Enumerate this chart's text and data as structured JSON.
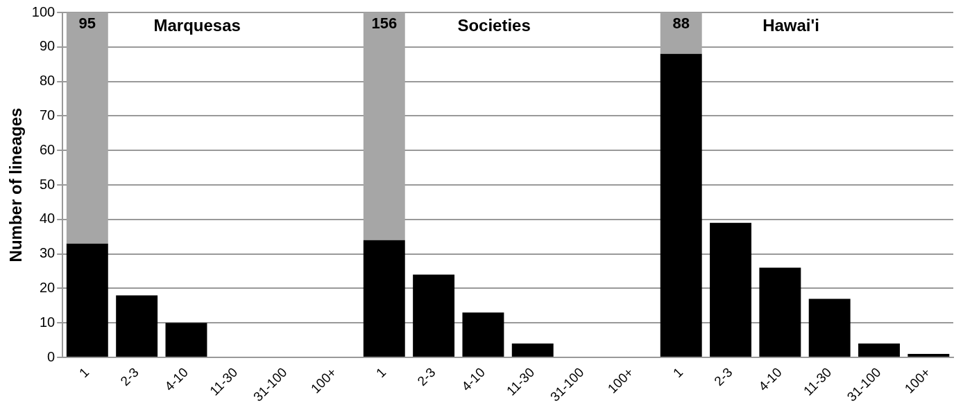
{
  "chart_data": {
    "type": "bar",
    "ylabel": "Number of lineages",
    "categories": [
      "1",
      "2-3",
      "4-10",
      "11-30",
      "31-100",
      "100+",
      "1",
      "2-3",
      "4-10",
      "11-30",
      "31-100",
      "100+",
      "1",
      "2-3",
      "4-10",
      "11-30",
      "31-100",
      "100+"
    ],
    "stacked": true,
    "series": [
      {
        "color": "#000000",
        "values": [
          33,
          18,
          10,
          0,
          0,
          0,
          34,
          24,
          13,
          4,
          0,
          0,
          88,
          39,
          26,
          17,
          4,
          1
        ]
      },
      {
        "color": "#a6a6a6",
        "values": [
          67,
          null,
          null,
          null,
          null,
          null,
          66,
          null,
          null,
          null,
          null,
          null,
          12,
          null,
          null,
          null,
          null,
          null
        ]
      }
    ],
    "ylim": [
      0,
      100
    ],
    "yticks": [
      0,
      10,
      20,
      30,
      40,
      50,
      60,
      70,
      80,
      90,
      100
    ],
    "grid": "y",
    "legend": false,
    "annotations": [
      "Marquesas",
      "Societies",
      "Hawai'i",
      {
        "text": "95",
        "y": 100
      },
      {
        "text": "156",
        "y": 100
      },
      {
        "text": "88",
        "y": 100
      }
    ]
  }
}
